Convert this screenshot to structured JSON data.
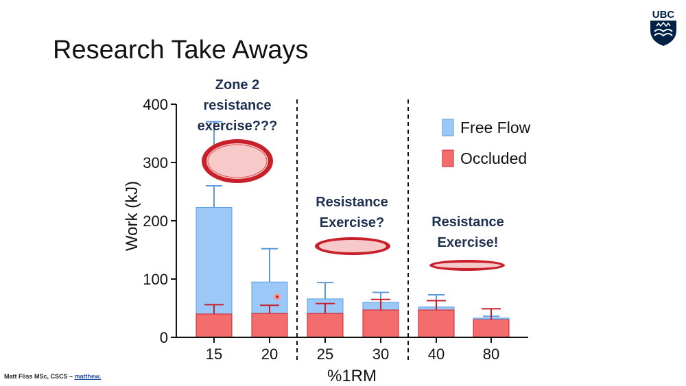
{
  "slide": {
    "title": "Research Take Aways",
    "footer_author": "Matt Fliss MSc, CSCS – ",
    "footer_link": "matthew."
  },
  "logo": {
    "text": "UBC",
    "color": "#002145"
  },
  "chart_data": {
    "type": "bar",
    "stacked": false,
    "overlaid": true,
    "categories": [
      "15",
      "20",
      "25",
      "30",
      "40",
      "80"
    ],
    "xlabel": "%1RM",
    "ylabel": "Work (kJ)",
    "ylim": [
      0,
      400
    ],
    "yticks": [
      0,
      100,
      200,
      300,
      400
    ],
    "series": [
      {
        "name": "Free Flow",
        "color": "#9cc8f7",
        "stroke": "#5a9be0",
        "values": [
          223,
          95,
          66,
          60,
          52,
          33
        ],
        "error_upper": [
          260,
          152,
          94,
          77,
          73,
          36
        ]
      },
      {
        "name": "Occluded",
        "color": "#f36d6d",
        "stroke": "#c8202a",
        "values": [
          40,
          41,
          41,
          47,
          47,
          30
        ],
        "error_upper": [
          56,
          55,
          58,
          65,
          63,
          49
        ]
      }
    ],
    "extra_error_top": {
      "category": "15",
      "value": 370
    },
    "legend_position": "top-right",
    "dividers_after": [
      "20",
      "30"
    ],
    "annotations": [
      {
        "lines": [
          "Zone 2",
          "resistance",
          "exercise???"
        ]
      },
      {
        "lines": [
          "Resistance",
          "Exercise?"
        ]
      },
      {
        "lines": [
          "Resistance",
          "Exercise!"
        ]
      }
    ]
  }
}
